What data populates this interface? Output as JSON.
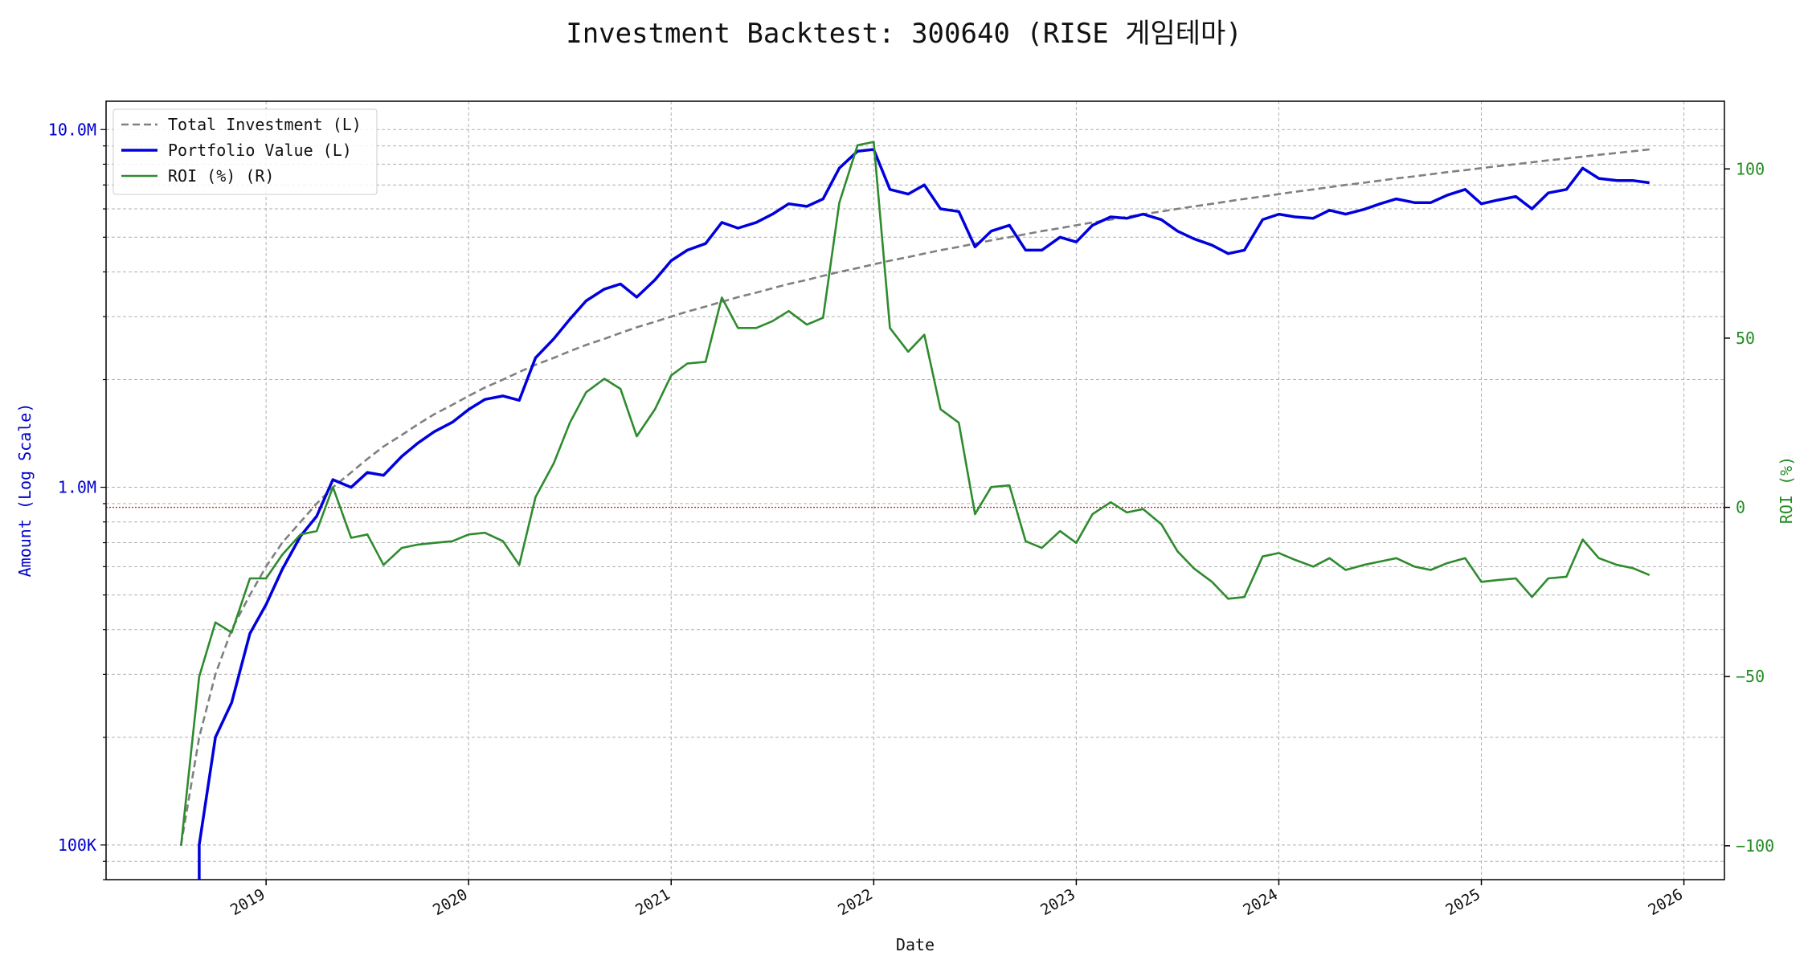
{
  "chart_data": {
    "type": "line",
    "title": "Investment Backtest: 300640 (RISE 게임테마)",
    "xlabel": "Date",
    "ylabel_left": "Amount (Log Scale)",
    "ylabel_right": "ROI (%)",
    "left_scale": "log",
    "left_ylim": [
      80000,
      12000000
    ],
    "right_ylim": [
      -110,
      120
    ],
    "xlim": [
      2018.21,
      2026.2
    ],
    "x_ticks": [
      {
        "value": 2019,
        "label": "2019"
      },
      {
        "value": 2020,
        "label": "2020"
      },
      {
        "value": 2021,
        "label": "2021"
      },
      {
        "value": 2022,
        "label": "2022"
      },
      {
        "value": 2023,
        "label": "2023"
      },
      {
        "value": 2024,
        "label": "2024"
      },
      {
        "value": 2025,
        "label": "2025"
      },
      {
        "value": 2026,
        "label": "2026"
      }
    ],
    "left_ticks": [
      {
        "value": 100000,
        "label": "100K"
      },
      {
        "value": 1000000,
        "label": "1.0M"
      },
      {
        "value": 10000000,
        "label": "10.0M"
      }
    ],
    "right_ticks": [
      {
        "value": -100,
        "label": "−100"
      },
      {
        "value": -50,
        "label": "−50"
      },
      {
        "value": 0,
        "label": "0"
      },
      {
        "value": 50,
        "label": "50"
      },
      {
        "value": 100,
        "label": "100"
      }
    ],
    "grid": true,
    "legend_position": "top-left",
    "zero_line": {
      "value": 0,
      "axis": "right",
      "color": "#d62728"
    },
    "series": [
      {
        "name": "Total Investment (L)",
        "axis": "left",
        "color": "#808080",
        "style": "dashed",
        "x": [
          2018.58,
          2018.67,
          2018.75,
          2018.83,
          2018.92,
          2019.0,
          2019.08,
          2019.17,
          2019.25,
          2019.33,
          2019.42,
          2019.5,
          2019.58,
          2019.67,
          2019.75,
          2019.83,
          2019.92,
          2020.0,
          2020.08,
          2020.17,
          2020.25,
          2020.33,
          2020.42,
          2020.5,
          2020.58,
          2020.67,
          2020.75,
          2020.83,
          2020.92,
          2021.0,
          2021.08,
          2021.17,
          2021.25,
          2021.33,
          2021.42,
          2021.5,
          2021.58,
          2021.67,
          2021.75,
          2021.83,
          2021.92,
          2022.0,
          2022.08,
          2022.17,
          2022.25,
          2022.33,
          2022.42,
          2022.5,
          2022.58,
          2022.67,
          2022.75,
          2022.83,
          2022.92,
          2023.0,
          2023.08,
          2023.17,
          2023.25,
          2023.33,
          2023.42,
          2023.5,
          2023.58,
          2023.67,
          2023.75,
          2023.83,
          2023.92,
          2024.0,
          2024.08,
          2024.17,
          2024.25,
          2024.33,
          2024.42,
          2024.5,
          2024.58,
          2024.67,
          2024.75,
          2024.83,
          2024.92,
          2025.0,
          2025.08,
          2025.17,
          2025.25,
          2025.33,
          2025.42,
          2025.5,
          2025.58,
          2025.67,
          2025.75,
          2025.83
        ],
        "values": [
          100000,
          200000,
          300000,
          400000,
          500000,
          600000,
          700000,
          800000,
          900000,
          1000000,
          1100000,
          1200000,
          1300000,
          1400000,
          1500000,
          1600000,
          1700000,
          1800000,
          1900000,
          2000000,
          2100000,
          2200000,
          2300000,
          2400000,
          2500000,
          2600000,
          2700000,
          2800000,
          2900000,
          3000000,
          3100000,
          3200000,
          3300000,
          3400000,
          3500000,
          3600000,
          3700000,
          3800000,
          3900000,
          4000000,
          4100000,
          4200000,
          4300000,
          4400000,
          4500000,
          4600000,
          4700000,
          4800000,
          4900000,
          5000000,
          5100000,
          5200000,
          5300000,
          5400000,
          5500000,
          5600000,
          5700000,
          5800000,
          5900000,
          6000000,
          6100000,
          6200000,
          6300000,
          6400000,
          6500000,
          6600000,
          6700000,
          6800000,
          6900000,
          7000000,
          7100000,
          7200000,
          7300000,
          7400000,
          7500000,
          7600000,
          7700000,
          7800000,
          7900000,
          8000000,
          8100000,
          8200000,
          8300000,
          8400000,
          8500000,
          8600000,
          8700000,
          8800000
        ]
      },
      {
        "name": "Portfolio Value (L)",
        "axis": "left",
        "color": "#0000dd",
        "style": "solid",
        "x": [
          2018.67,
          2018.75,
          2018.83,
          2018.92,
          2019.0,
          2019.08,
          2019.17,
          2019.25,
          2019.33,
          2019.42,
          2019.5,
          2019.58,
          2019.67,
          2019.75,
          2019.83,
          2019.92,
          2020.0,
          2020.08,
          2020.17,
          2020.25,
          2020.33,
          2020.42,
          2020.5,
          2020.58,
          2020.67,
          2020.75,
          2020.83,
          2020.92,
          2021.0,
          2021.08,
          2021.17,
          2021.25,
          2021.33,
          2021.42,
          2021.5,
          2021.58,
          2021.67,
          2021.75,
          2021.83,
          2021.92,
          2022.0,
          2022.08,
          2022.17,
          2022.25,
          2022.33,
          2022.42,
          2022.5,
          2022.58,
          2022.67,
          2022.75,
          2022.83,
          2022.92,
          2023.0,
          2023.08,
          2023.17,
          2023.25,
          2023.33,
          2023.42,
          2023.5,
          2023.58,
          2023.67,
          2023.75,
          2023.83,
          2023.92,
          2024.0,
          2024.08,
          2024.17,
          2024.25,
          2024.33,
          2024.42,
          2024.5,
          2024.58,
          2024.67,
          2024.75,
          2024.83,
          2024.92,
          2025.0,
          2025.08,
          2025.17,
          2025.25,
          2025.33,
          2025.42,
          2025.5,
          2025.58,
          2025.67,
          2025.75,
          2025.83
        ],
        "values": [
          100000,
          200000,
          250000,
          390000,
          470000,
          590000,
          730000,
          830000,
          1050000,
          1000000,
          1100000,
          1080000,
          1220000,
          1330000,
          1430000,
          1520000,
          1650000,
          1760000,
          1800000,
          1750000,
          2300000,
          2600000,
          2950000,
          3320000,
          3580000,
          3700000,
          3400000,
          3800000,
          4300000,
          4600000,
          4800000,
          5500000,
          5300000,
          5500000,
          5800000,
          6200000,
          6100000,
          6400000,
          7800000,
          8700000,
          8800000,
          6800000,
          6600000,
          7000000,
          6000000,
          5900000,
          4700000,
          5200000,
          5400000,
          4600000,
          4600000,
          5000000,
          4850000,
          5400000,
          5700000,
          5650000,
          5800000,
          5600000,
          5200000,
          4950000,
          4750000,
          4500000,
          4600000,
          5600000,
          5800000,
          5700000,
          5650000,
          5950000,
          5800000,
          5980000,
          6200000,
          6400000,
          6250000,
          6250000,
          6550000,
          6800000,
          6200000,
          6350000,
          6500000,
          6000000,
          6650000,
          6800000,
          7800000,
          7300000,
          7200000,
          7200000,
          7100000
        ]
      },
      {
        "name": "ROI (%) (R)",
        "axis": "right",
        "color": "#2e8b2e",
        "style": "solid",
        "x": [
          2018.58,
          2018.67,
          2018.75,
          2018.83,
          2018.92,
          2019.0,
          2019.08,
          2019.17,
          2019.25,
          2019.33,
          2019.42,
          2019.5,
          2019.58,
          2019.67,
          2019.75,
          2019.83,
          2019.92,
          2020.0,
          2020.08,
          2020.17,
          2020.25,
          2020.33,
          2020.42,
          2020.5,
          2020.58,
          2020.67,
          2020.75,
          2020.83,
          2020.92,
          2021.0,
          2021.08,
          2021.17,
          2021.25,
          2021.33,
          2021.42,
          2021.5,
          2021.58,
          2021.67,
          2021.75,
          2021.83,
          2021.92,
          2022.0,
          2022.08,
          2022.17,
          2022.25,
          2022.33,
          2022.42,
          2022.5,
          2022.58,
          2022.67,
          2022.75,
          2022.83,
          2022.92,
          2023.0,
          2023.08,
          2023.17,
          2023.25,
          2023.33,
          2023.42,
          2023.5,
          2023.58,
          2023.67,
          2023.75,
          2023.83,
          2023.92,
          2024.0,
          2024.08,
          2024.17,
          2024.25,
          2024.33,
          2024.42,
          2024.5,
          2024.58,
          2024.67,
          2024.75,
          2024.83,
          2024.92,
          2025.0,
          2025.08,
          2025.17,
          2025.25,
          2025.33,
          2025.42,
          2025.5,
          2025.58,
          2025.67,
          2025.75,
          2025.83
        ],
        "values": [
          -100,
          -50,
          -34,
          -37,
          -21,
          -21,
          -14,
          -8,
          -7,
          6,
          -9,
          -8,
          -17,
          -12,
          -11,
          -10.5,
          -10,
          -8,
          -7.5,
          -10,
          -17,
          3,
          13,
          25,
          34,
          38,
          35,
          21,
          29,
          39,
          42.5,
          43,
          62,
          53,
          53,
          55,
          58,
          54,
          56,
          90,
          107,
          108,
          53,
          46,
          51,
          29,
          25,
          -2,
          6,
          6.5,
          -10,
          -12,
          -7,
          -10.5,
          -2,
          1.5,
          -1.5,
          -0.5,
          -5,
          -13,
          -18,
          -22,
          -27,
          -26.5,
          -14.5,
          -13.5,
          -15.5,
          -17.5,
          -15,
          -18.5,
          -17,
          -16,
          -15,
          -17.5,
          -18.5,
          -16.5,
          -15,
          -22,
          -21.5,
          -21,
          -26.5,
          -21,
          -20.5,
          -9.5,
          -15,
          -17,
          -18,
          -20
        ]
      }
    ]
  }
}
